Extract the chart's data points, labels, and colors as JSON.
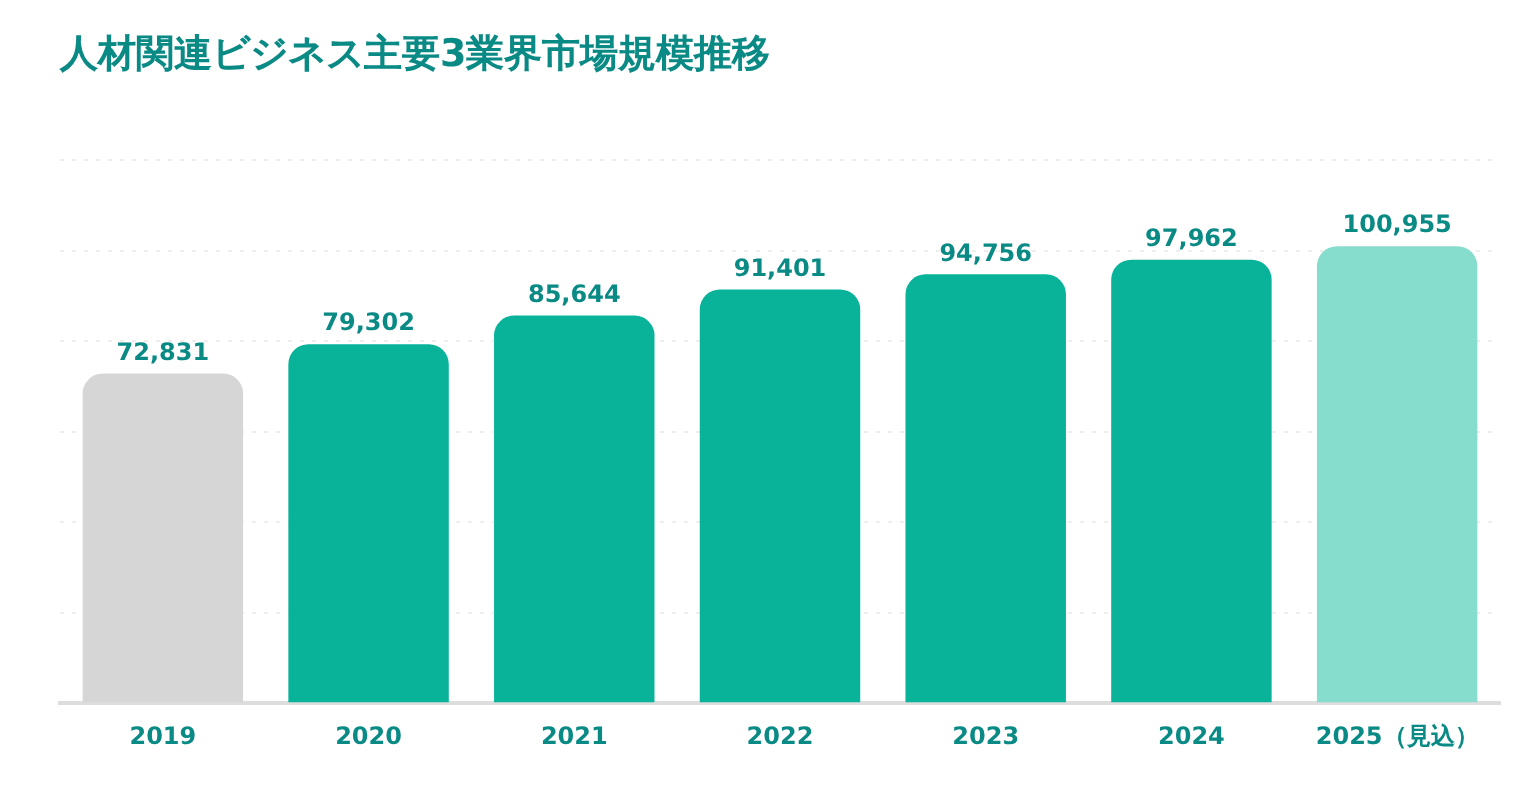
{
  "chart_data": {
    "type": "bar",
    "title": "人材関連ビジネス主要3業界市場規模推移",
    "categories": [
      "2019",
      "2020",
      "2021",
      "2022",
      "2023",
      "2024",
      "2025（見込）"
    ],
    "values": [
      72831,
      79302,
      85644,
      91401,
      94756,
      97962,
      100955
    ],
    "colors": [
      "#d6d6d6",
      "#08b39a",
      "#08b39a",
      "#08b39a",
      "#08b39a",
      "#08b39a",
      "#86dccd"
    ],
    "value_labels": [
      "72,831",
      "79,302",
      "85,644",
      "91,401",
      "94,756",
      "97,962",
      "100,955"
    ],
    "grid": "y",
    "tick_labels": "x"
  }
}
